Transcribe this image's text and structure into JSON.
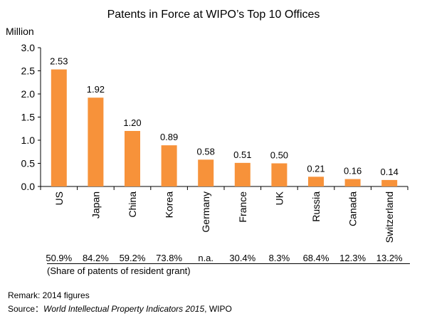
{
  "chart_data": {
    "type": "bar",
    "title": "Patents in Force at WIPO’s Top 10 Offices",
    "ylabel": "Million",
    "xlabel": "",
    "ylim": [
      0,
      3.0
    ],
    "yticks": [
      "0.0",
      "0.5",
      "1.0",
      "1.5",
      "2.0",
      "2.5",
      "3.0"
    ],
    "grid": false,
    "bar_color": "#F7923A",
    "categories": [
      "US",
      "Japan",
      "China",
      "Korea",
      "Germany",
      "France",
      "UK",
      "Russia",
      "Canada",
      "Switzerland"
    ],
    "values": [
      2.53,
      1.92,
      1.2,
      0.89,
      0.58,
      0.51,
      0.5,
      0.21,
      0.16,
      0.14
    ],
    "data_labels": [
      "2.53",
      "1.92",
      "1.20",
      "0.89",
      "0.58",
      "0.51",
      "0.50",
      "0.21",
      "0.16",
      "0.14"
    ]
  },
  "share": {
    "values": [
      "50.9%",
      "84.2%",
      "59.2%",
      "73.8%",
      "n.a.",
      "30.4%",
      "8.3%",
      "68.4%",
      "12.3%",
      "13.2%"
    ],
    "note": "(Share of patents of resident grant)"
  },
  "footer": {
    "remark": "Remark: 2014 figures",
    "source_prefix": "Source：",
    "source_publication": "World Intellectual Property Indicators 2015",
    "source_suffix": ", WIPO"
  }
}
